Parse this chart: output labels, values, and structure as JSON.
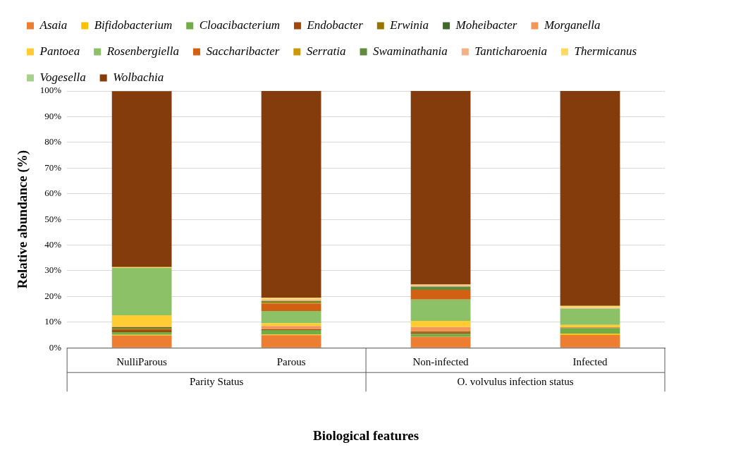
{
  "chart_data": {
    "type": "bar",
    "stacked": true,
    "xlabel": "Biological features",
    "ylabel": "Relative abundance (%)",
    "categories": [
      "NulliParous",
      "Parous",
      "Non-infected",
      "Infected"
    ],
    "annotations": [
      "Parity Status",
      "O. volvulus infection status"
    ],
    "ylim": [
      0,
      100
    ],
    "yticks": [
      {
        "value": 0,
        "label": "0%"
      },
      {
        "value": 10,
        "label": "10%"
      },
      {
        "value": 20,
        "label": "20%"
      },
      {
        "value": 30,
        "label": "30%"
      },
      {
        "value": 40,
        "label": "40%"
      },
      {
        "value": 50,
        "label": "50%"
      },
      {
        "value": 60,
        "label": "60%"
      },
      {
        "value": 70,
        "label": "70%"
      },
      {
        "value": 80,
        "label": "80%"
      },
      {
        "value": 90,
        "label": "90%"
      },
      {
        "value": 100,
        "label": "100%"
      }
    ],
    "grid": "y",
    "legend": "top",
    "series": [
      {
        "name": "Asaia",
        "color": "#ed7d31",
        "values": [
          4.8,
          4.9,
          4.3,
          5.0
        ]
      },
      {
        "name": "Bifidobacterium",
        "color": "#ffc000",
        "values": [
          0.3,
          0.3,
          0,
          0.5
        ]
      },
      {
        "name": "Cloacibacterium",
        "color": "#70ad47",
        "values": [
          1.0,
          1.7,
          1.2,
          2.1
        ]
      },
      {
        "name": "Endobacter",
        "color": "#9e480e",
        "values": [
          0.9,
          0.3,
          0.5,
          0.3
        ]
      },
      {
        "name": "Erwinia",
        "color": "#997300",
        "values": [
          0.7,
          0,
          0.4,
          0
        ]
      },
      {
        "name": "Moheibacter",
        "color": "#43682b",
        "values": [
          0.3,
          0,
          0,
          0
        ]
      },
      {
        "name": "Morganella",
        "color": "#f1975a",
        "values": [
          0.2,
          1.3,
          1.7,
          0
        ]
      },
      {
        "name": "Pantoea",
        "color": "#ffcd33",
        "values": [
          4.5,
          1.1,
          2.4,
          1.0
        ]
      },
      {
        "name": "Rosenbergiella",
        "color": "#8cc168",
        "values": [
          18.4,
          4.7,
          8.3,
          6.4
        ]
      },
      {
        "name": "Saccharibacter",
        "color": "#d26012",
        "values": [
          0,
          3.0,
          3.8,
          0
        ]
      },
      {
        "name": "Serratia",
        "color": "#cc9a00",
        "values": [
          0,
          0.3,
          0,
          0
        ]
      },
      {
        "name": "Swaminathania",
        "color": "#5f8c3c",
        "values": [
          0,
          0.6,
          1.2,
          0
        ]
      },
      {
        "name": "Tanticharoenia",
        "color": "#f4b183",
        "values": [
          null,
          0.6,
          0.5,
          0.3
        ]
      },
      {
        "name": "Thermicanus",
        "color": "#ffd966",
        "values": [
          0.3,
          0.7,
          0.3,
          0.7
        ]
      },
      {
        "name": "Vogesella",
        "color": "#a9d18e",
        "values": [
          0,
          0,
          0,
          0
        ]
      },
      {
        "name": "Wolbachia",
        "color": "#843c0c",
        "values": [
          68.5,
          80.5,
          75.4,
          83.7
        ]
      }
    ]
  }
}
